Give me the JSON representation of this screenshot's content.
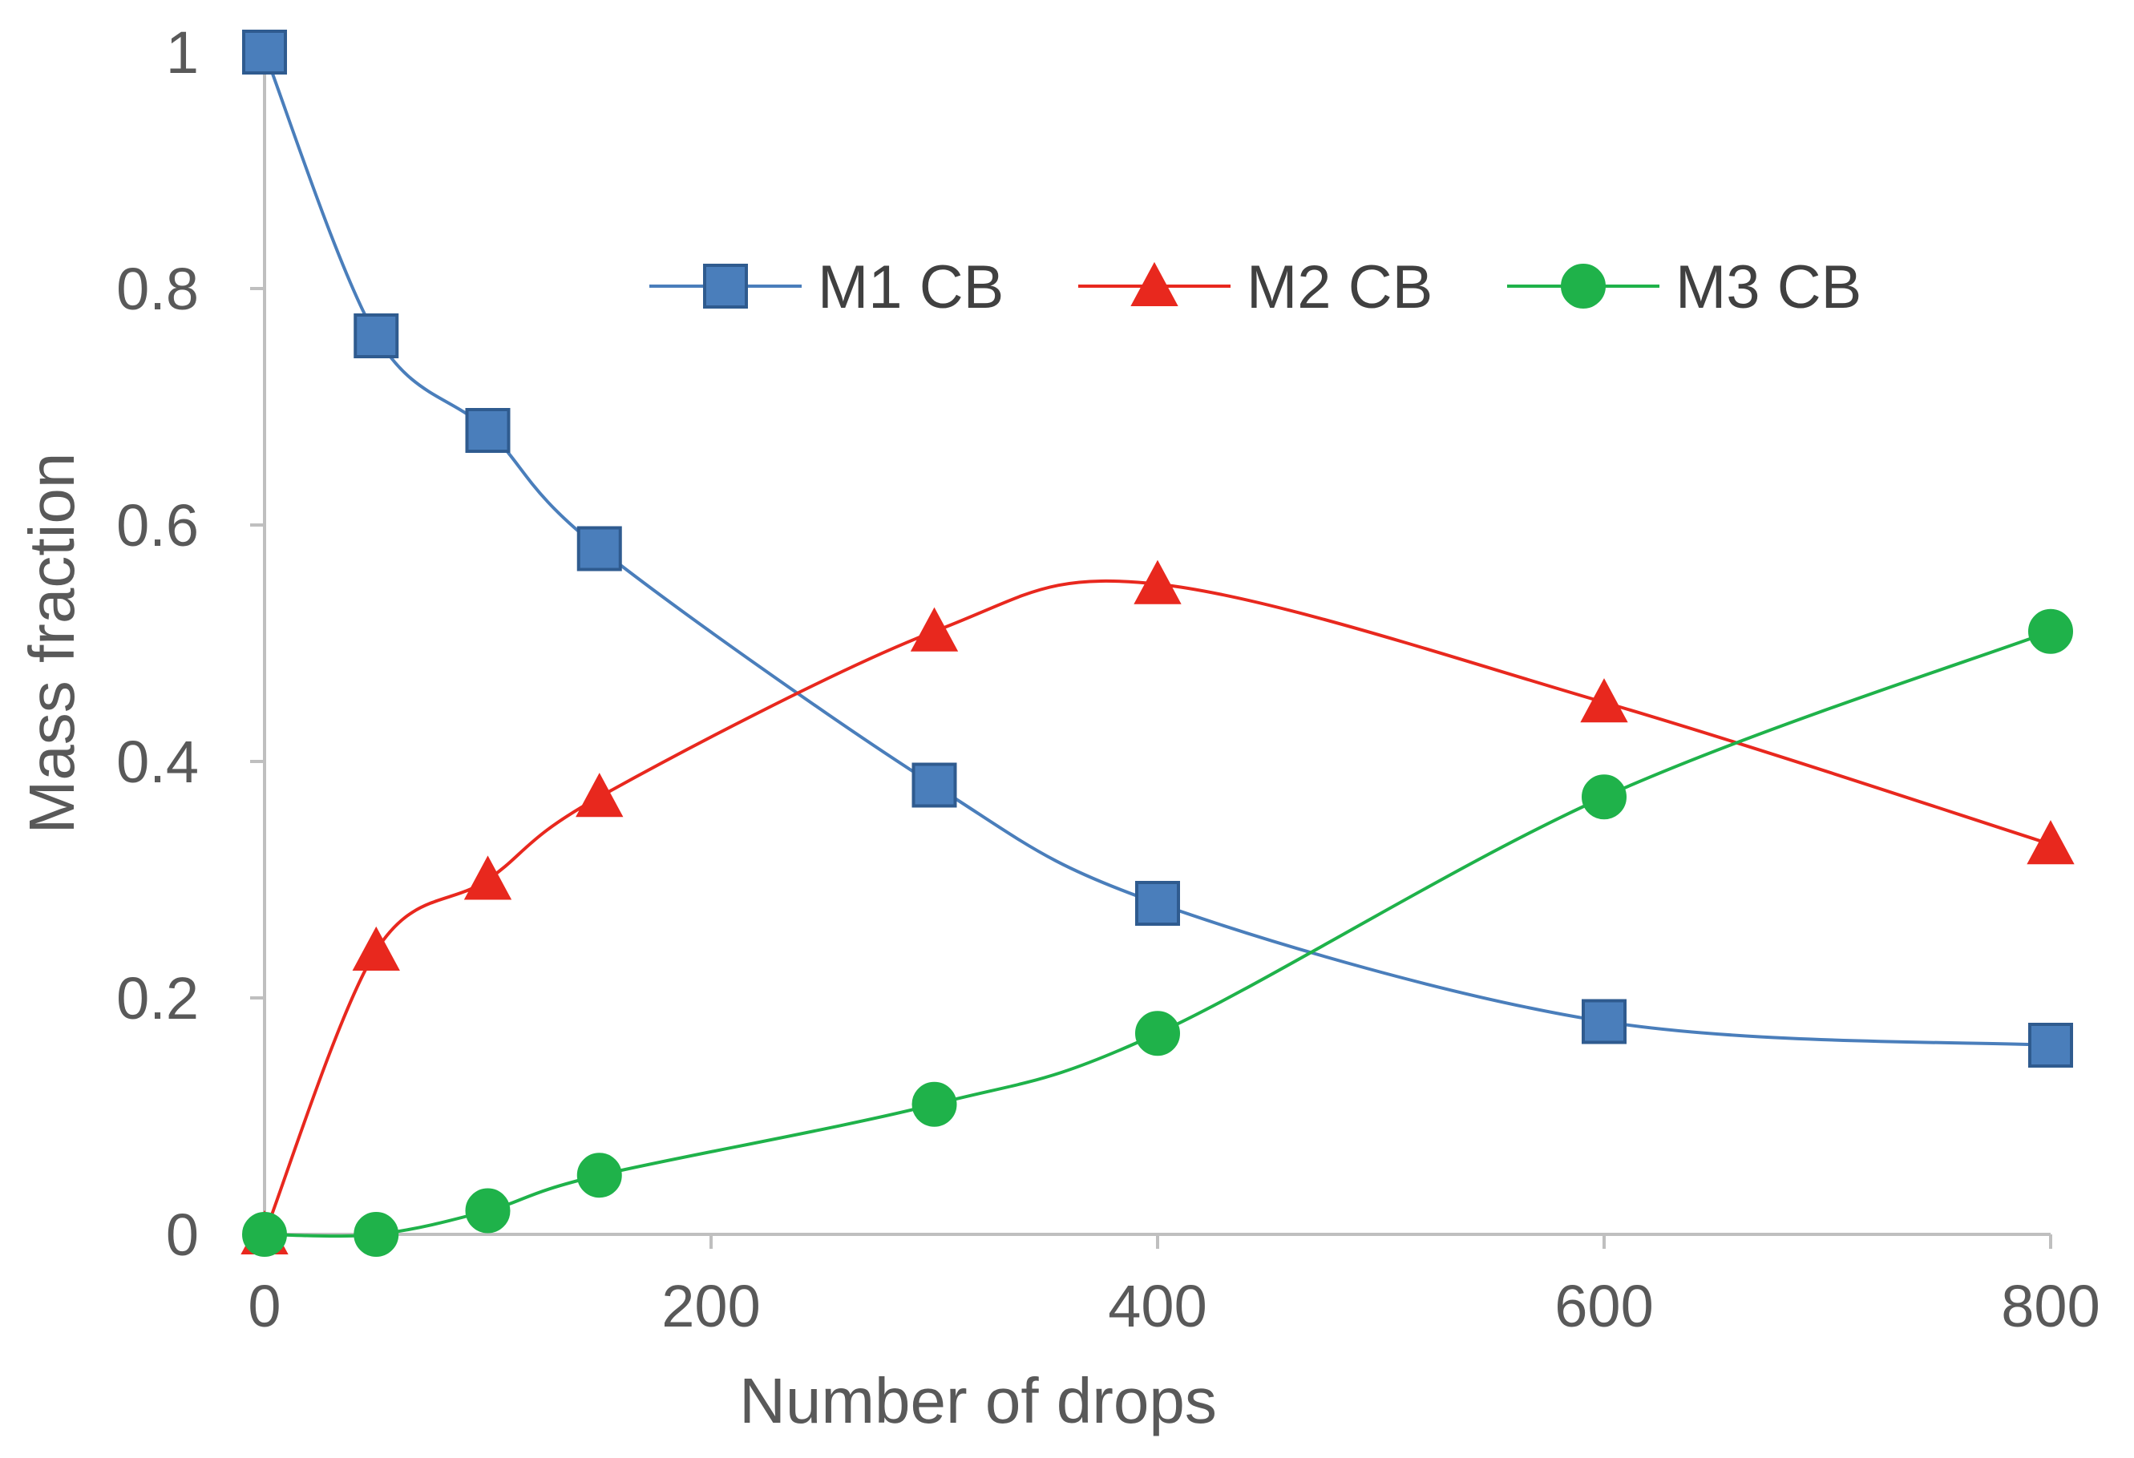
{
  "chart_data": {
    "type": "line",
    "title": "",
    "xlabel": "Number of drops",
    "ylabel": "Mass fraction",
    "xlim": [
      0,
      800
    ],
    "ylim": [
      0,
      1
    ],
    "x_ticks": [
      "0",
      "200",
      "400",
      "600",
      "800"
    ],
    "x_tick_values": [
      0,
      200,
      400,
      600,
      800
    ],
    "y_ticks": [
      "0",
      "0.2",
      "0.4",
      "0.6",
      "0.8",
      "1"
    ],
    "y_tick_values": [
      0,
      0.2,
      0.4,
      0.6,
      0.8,
      1
    ],
    "grid": false,
    "legend_position": "top-center",
    "smoothed": true,
    "x": [
      0,
      50,
      100,
      150,
      300,
      400,
      600,
      800
    ],
    "series": [
      {
        "name": "M1 CB",
        "color": "#4a7ebb",
        "edge_color": "#2f5b8f",
        "marker": "square",
        "values": [
          1.0,
          0.76,
          0.68,
          0.58,
          0.38,
          0.28,
          0.18,
          0.16
        ]
      },
      {
        "name": "M2 CB",
        "color": "#e8281e",
        "edge_color": "#e8281e",
        "marker": "triangle",
        "values": [
          0.0,
          0.24,
          0.3,
          0.37,
          0.51,
          0.55,
          0.45,
          0.33
        ]
      },
      {
        "name": "M3 CB",
        "color": "#1fb24a",
        "edge_color": "#1fb24a",
        "marker": "circle",
        "values": [
          0.0,
          0.0,
          0.02,
          0.05,
          0.11,
          0.17,
          0.37,
          0.51
        ]
      }
    ]
  }
}
